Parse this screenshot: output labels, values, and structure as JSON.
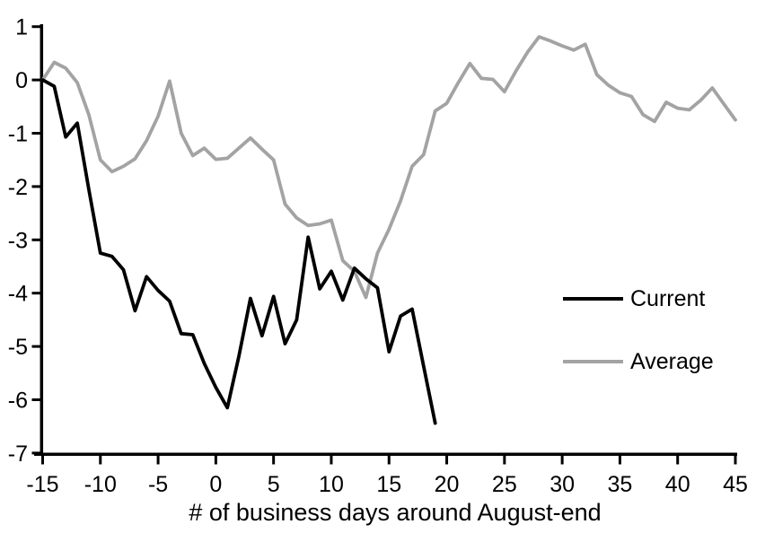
{
  "chart_data": {
    "type": "line",
    "title": "",
    "xlabel": "# of business days around August-end",
    "ylabel": "",
    "xlim": [
      -15,
      45
    ],
    "ylim": [
      -7,
      1
    ],
    "xticks": [
      -15,
      -10,
      -5,
      0,
      5,
      10,
      15,
      20,
      25,
      30,
      35,
      40,
      45
    ],
    "yticks": [
      1,
      0,
      -1,
      -2,
      -3,
      -4,
      -5,
      -6,
      -7
    ],
    "grid": false,
    "legend_position": "middle-right",
    "axis_color": "#000000",
    "series": [
      {
        "name": "Average",
        "color": "#a3a3a3",
        "x": [
          -15,
          -14,
          -13,
          -12,
          -11,
          -10,
          -9,
          -8,
          -7,
          -6,
          -5,
          -4,
          -3,
          -2,
          -1,
          0,
          1,
          2,
          3,
          4,
          5,
          6,
          7,
          8,
          9,
          10,
          11,
          12,
          13,
          14,
          15,
          16,
          17,
          18,
          19,
          20,
          21,
          22,
          23,
          24,
          25,
          26,
          27,
          28,
          29,
          30,
          31,
          32,
          33,
          34,
          35,
          36,
          37,
          38,
          39,
          40,
          41,
          42,
          43,
          44,
          45
        ],
        "values": [
          0.0,
          0.33,
          0.22,
          -0.05,
          -0.65,
          -1.5,
          -1.72,
          -1.62,
          -1.48,
          -1.14,
          -0.68,
          -0.02,
          -1.0,
          -1.42,
          -1.28,
          -1.49,
          -1.47,
          -1.28,
          -1.09,
          -1.3,
          -1.5,
          -2.33,
          -2.59,
          -2.73,
          -2.7,
          -2.63,
          -3.39,
          -3.59,
          -4.08,
          -3.25,
          -2.8,
          -2.27,
          -1.62,
          -1.4,
          -0.58,
          -0.44,
          -0.05,
          0.31,
          0.03,
          0.01,
          -0.22,
          0.17,
          0.52,
          0.81,
          0.73,
          0.64,
          0.56,
          0.67,
          0.1,
          -0.1,
          -0.24,
          -0.31,
          -0.65,
          -0.78,
          -0.42,
          -0.53,
          -0.56,
          -0.38,
          -0.15,
          -0.45,
          -0.75
        ]
      },
      {
        "name": "Current",
        "color": "#000000",
        "x": [
          -15,
          -14,
          -13,
          -12,
          -11,
          -10,
          -9,
          -8,
          -7,
          -6,
          -5,
          -4,
          -3,
          -2,
          -1,
          0,
          1,
          2,
          3,
          4,
          5,
          6,
          7,
          8,
          9,
          10,
          11,
          12,
          13,
          14,
          15,
          16,
          17,
          18,
          19
        ],
        "values": [
          0.0,
          -0.12,
          -1.07,
          -0.81,
          -2.05,
          -3.25,
          -3.31,
          -3.56,
          -4.33,
          -3.69,
          -3.95,
          -4.15,
          -4.76,
          -4.78,
          -5.32,
          -5.77,
          -6.15,
          -5.18,
          -4.1,
          -4.8,
          -4.06,
          -4.95,
          -4.5,
          -2.95,
          -3.92,
          -3.59,
          -4.13,
          -3.53,
          -3.73,
          -3.9,
          -5.1,
          -4.43,
          -4.3,
          -5.37,
          -6.44
        ]
      }
    ]
  },
  "legend": [
    {
      "label": "Current",
      "color": "#000000"
    },
    {
      "label": "Average",
      "color": "#a3a3a3"
    }
  ]
}
